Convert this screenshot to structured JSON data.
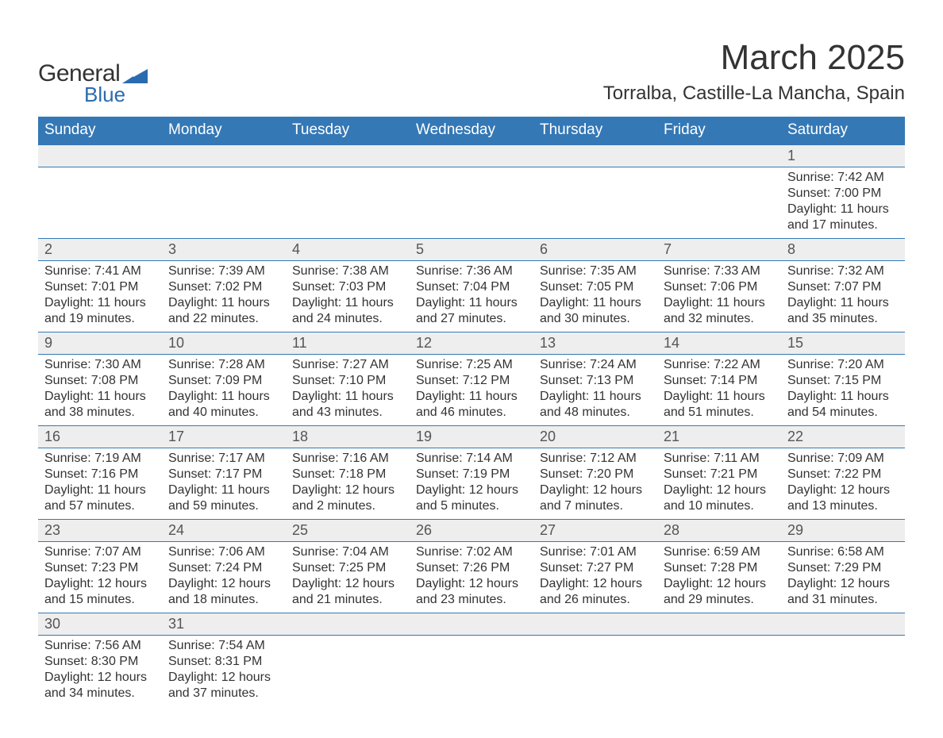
{
  "logo": {
    "word1": "General",
    "word2": "Blue",
    "triangle_color": "#2a6bb0"
  },
  "title": "March 2025",
  "location": "Torralba, Castille-La Mancha, Spain",
  "colors": {
    "header_bg": "#3478b6",
    "header_text": "#ffffff",
    "daynum_bg": "#eeeeee",
    "text": "#333333",
    "row_divider": "#3478b6"
  },
  "typography": {
    "title_fontsize": 44,
    "location_fontsize": 24,
    "weekday_fontsize": 19,
    "daynum_fontsize": 18,
    "detail_fontsize": 16,
    "font_family": "Arial"
  },
  "weekdays": [
    "Sunday",
    "Monday",
    "Tuesday",
    "Wednesday",
    "Thursday",
    "Friday",
    "Saturday"
  ],
  "weeks": [
    [
      null,
      null,
      null,
      null,
      null,
      null,
      {
        "day": "1",
        "sunrise": "Sunrise: 7:42 AM",
        "sunset": "Sunset: 7:00 PM",
        "daylight1": "Daylight: 11 hours",
        "daylight2": "and 17 minutes."
      }
    ],
    [
      {
        "day": "2",
        "sunrise": "Sunrise: 7:41 AM",
        "sunset": "Sunset: 7:01 PM",
        "daylight1": "Daylight: 11 hours",
        "daylight2": "and 19 minutes."
      },
      {
        "day": "3",
        "sunrise": "Sunrise: 7:39 AM",
        "sunset": "Sunset: 7:02 PM",
        "daylight1": "Daylight: 11 hours",
        "daylight2": "and 22 minutes."
      },
      {
        "day": "4",
        "sunrise": "Sunrise: 7:38 AM",
        "sunset": "Sunset: 7:03 PM",
        "daylight1": "Daylight: 11 hours",
        "daylight2": "and 24 minutes."
      },
      {
        "day": "5",
        "sunrise": "Sunrise: 7:36 AM",
        "sunset": "Sunset: 7:04 PM",
        "daylight1": "Daylight: 11 hours",
        "daylight2": "and 27 minutes."
      },
      {
        "day": "6",
        "sunrise": "Sunrise: 7:35 AM",
        "sunset": "Sunset: 7:05 PM",
        "daylight1": "Daylight: 11 hours",
        "daylight2": "and 30 minutes."
      },
      {
        "day": "7",
        "sunrise": "Sunrise: 7:33 AM",
        "sunset": "Sunset: 7:06 PM",
        "daylight1": "Daylight: 11 hours",
        "daylight2": "and 32 minutes."
      },
      {
        "day": "8",
        "sunrise": "Sunrise: 7:32 AM",
        "sunset": "Sunset: 7:07 PM",
        "daylight1": "Daylight: 11 hours",
        "daylight2": "and 35 minutes."
      }
    ],
    [
      {
        "day": "9",
        "sunrise": "Sunrise: 7:30 AM",
        "sunset": "Sunset: 7:08 PM",
        "daylight1": "Daylight: 11 hours",
        "daylight2": "and 38 minutes."
      },
      {
        "day": "10",
        "sunrise": "Sunrise: 7:28 AM",
        "sunset": "Sunset: 7:09 PM",
        "daylight1": "Daylight: 11 hours",
        "daylight2": "and 40 minutes."
      },
      {
        "day": "11",
        "sunrise": "Sunrise: 7:27 AM",
        "sunset": "Sunset: 7:10 PM",
        "daylight1": "Daylight: 11 hours",
        "daylight2": "and 43 minutes."
      },
      {
        "day": "12",
        "sunrise": "Sunrise: 7:25 AM",
        "sunset": "Sunset: 7:12 PM",
        "daylight1": "Daylight: 11 hours",
        "daylight2": "and 46 minutes."
      },
      {
        "day": "13",
        "sunrise": "Sunrise: 7:24 AM",
        "sunset": "Sunset: 7:13 PM",
        "daylight1": "Daylight: 11 hours",
        "daylight2": "and 48 minutes."
      },
      {
        "day": "14",
        "sunrise": "Sunrise: 7:22 AM",
        "sunset": "Sunset: 7:14 PM",
        "daylight1": "Daylight: 11 hours",
        "daylight2": "and 51 minutes."
      },
      {
        "day": "15",
        "sunrise": "Sunrise: 7:20 AM",
        "sunset": "Sunset: 7:15 PM",
        "daylight1": "Daylight: 11 hours",
        "daylight2": "and 54 minutes."
      }
    ],
    [
      {
        "day": "16",
        "sunrise": "Sunrise: 7:19 AM",
        "sunset": "Sunset: 7:16 PM",
        "daylight1": "Daylight: 11 hours",
        "daylight2": "and 57 minutes."
      },
      {
        "day": "17",
        "sunrise": "Sunrise: 7:17 AM",
        "sunset": "Sunset: 7:17 PM",
        "daylight1": "Daylight: 11 hours",
        "daylight2": "and 59 minutes."
      },
      {
        "day": "18",
        "sunrise": "Sunrise: 7:16 AM",
        "sunset": "Sunset: 7:18 PM",
        "daylight1": "Daylight: 12 hours",
        "daylight2": "and 2 minutes."
      },
      {
        "day": "19",
        "sunrise": "Sunrise: 7:14 AM",
        "sunset": "Sunset: 7:19 PM",
        "daylight1": "Daylight: 12 hours",
        "daylight2": "and 5 minutes."
      },
      {
        "day": "20",
        "sunrise": "Sunrise: 7:12 AM",
        "sunset": "Sunset: 7:20 PM",
        "daylight1": "Daylight: 12 hours",
        "daylight2": "and 7 minutes."
      },
      {
        "day": "21",
        "sunrise": "Sunrise: 7:11 AM",
        "sunset": "Sunset: 7:21 PM",
        "daylight1": "Daylight: 12 hours",
        "daylight2": "and 10 minutes."
      },
      {
        "day": "22",
        "sunrise": "Sunrise: 7:09 AM",
        "sunset": "Sunset: 7:22 PM",
        "daylight1": "Daylight: 12 hours",
        "daylight2": "and 13 minutes."
      }
    ],
    [
      {
        "day": "23",
        "sunrise": "Sunrise: 7:07 AM",
        "sunset": "Sunset: 7:23 PM",
        "daylight1": "Daylight: 12 hours",
        "daylight2": "and 15 minutes."
      },
      {
        "day": "24",
        "sunrise": "Sunrise: 7:06 AM",
        "sunset": "Sunset: 7:24 PM",
        "daylight1": "Daylight: 12 hours",
        "daylight2": "and 18 minutes."
      },
      {
        "day": "25",
        "sunrise": "Sunrise: 7:04 AM",
        "sunset": "Sunset: 7:25 PM",
        "daylight1": "Daylight: 12 hours",
        "daylight2": "and 21 minutes."
      },
      {
        "day": "26",
        "sunrise": "Sunrise: 7:02 AM",
        "sunset": "Sunset: 7:26 PM",
        "daylight1": "Daylight: 12 hours",
        "daylight2": "and 23 minutes."
      },
      {
        "day": "27",
        "sunrise": "Sunrise: 7:01 AM",
        "sunset": "Sunset: 7:27 PM",
        "daylight1": "Daylight: 12 hours",
        "daylight2": "and 26 minutes."
      },
      {
        "day": "28",
        "sunrise": "Sunrise: 6:59 AM",
        "sunset": "Sunset: 7:28 PM",
        "daylight1": "Daylight: 12 hours",
        "daylight2": "and 29 minutes."
      },
      {
        "day": "29",
        "sunrise": "Sunrise: 6:58 AM",
        "sunset": "Sunset: 7:29 PM",
        "daylight1": "Daylight: 12 hours",
        "daylight2": "and 31 minutes."
      }
    ],
    [
      {
        "day": "30",
        "sunrise": "Sunrise: 7:56 AM",
        "sunset": "Sunset: 8:30 PM",
        "daylight1": "Daylight: 12 hours",
        "daylight2": "and 34 minutes."
      },
      {
        "day": "31",
        "sunrise": "Sunrise: 7:54 AM",
        "sunset": "Sunset: 8:31 PM",
        "daylight1": "Daylight: 12 hours",
        "daylight2": "and 37 minutes."
      },
      null,
      null,
      null,
      null,
      null
    ]
  ]
}
